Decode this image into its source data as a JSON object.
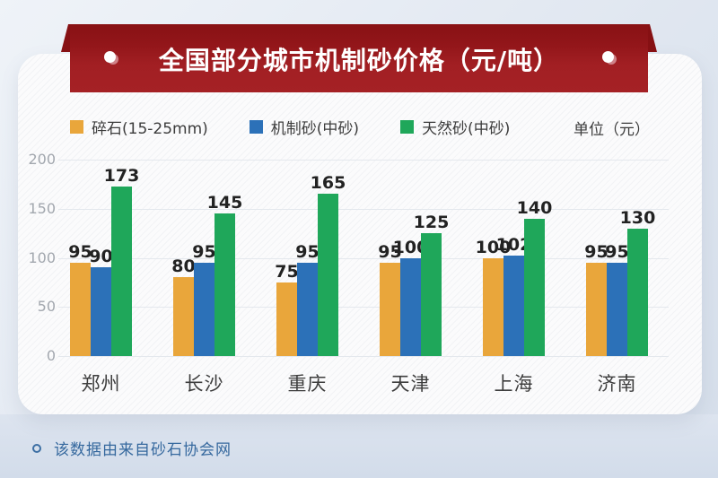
{
  "banner": {
    "title": "全国部分城市机制砂价格（元/吨）"
  },
  "unit_label": "单位（元）",
  "chart_data": {
    "type": "bar",
    "title": "全国部分城市机制砂价格（元/吨）",
    "unit": "单位（元）",
    "categories": [
      "郑州",
      "长沙",
      "重庆",
      "天津",
      "上海",
      "济南"
    ],
    "series": [
      {
        "name": "碎石(15-25mm)",
        "color": "#E9A63B",
        "values": [
          95,
          80,
          75,
          95,
          100,
          95
        ]
      },
      {
        "name": "机制砂(中砂)",
        "color": "#2C71B8",
        "values": [
          90,
          95,
          95,
          100,
          102,
          95
        ]
      },
      {
        "name": "天然砂(中砂)",
        "color": "#1FA75A",
        "values": [
          173,
          145,
          165,
          125,
          140,
          130
        ]
      }
    ],
    "yticks": [
      0,
      50,
      100,
      150,
      200
    ],
    "ylim": [
      0,
      200
    ],
    "grid": true,
    "legend_position": "top",
    "value_labels": true
  },
  "footer": {
    "source_note": "该数据由来自砂石协会网"
  },
  "colors": {
    "banner_dark": "#861013",
    "banner_main": "#a52125",
    "bar_yellow": "#E9A63B",
    "bar_blue": "#2C71B8",
    "bar_green": "#1FA75A",
    "footer_text": "#35689e"
  }
}
